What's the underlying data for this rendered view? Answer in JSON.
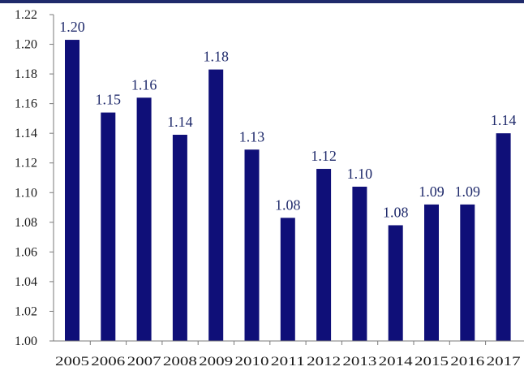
{
  "chart_data": {
    "type": "bar",
    "categories": [
      "2005",
      "2006",
      "2007",
      "2008",
      "2009",
      "2010",
      "2011",
      "2012",
      "2013",
      "2014",
      "2015",
      "2016",
      "2017"
    ],
    "values": [
      1.203,
      1.154,
      1.164,
      1.139,
      1.183,
      1.129,
      1.083,
      1.116,
      1.104,
      1.078,
      1.092,
      1.092,
      1.14
    ],
    "value_labels": [
      "1.20",
      "1.15",
      "1.16",
      "1.14",
      "1.18",
      "1.13",
      "1.08",
      "1.12",
      "1.10",
      "1.08",
      "1.09",
      "1.09",
      "1.14"
    ],
    "ylim": [
      1.0,
      1.22
    ],
    "yticks": [
      "1.00",
      "1.02",
      "1.04",
      "1.06",
      "1.08",
      "1.10",
      "1.12",
      "1.14",
      "1.16",
      "1.18",
      "1.20",
      "1.22"
    ],
    "grid": false,
    "bar_color": "#0f0f78",
    "label_color": "#1f2a6b",
    "top_rule_color": "#1f2a6b"
  }
}
